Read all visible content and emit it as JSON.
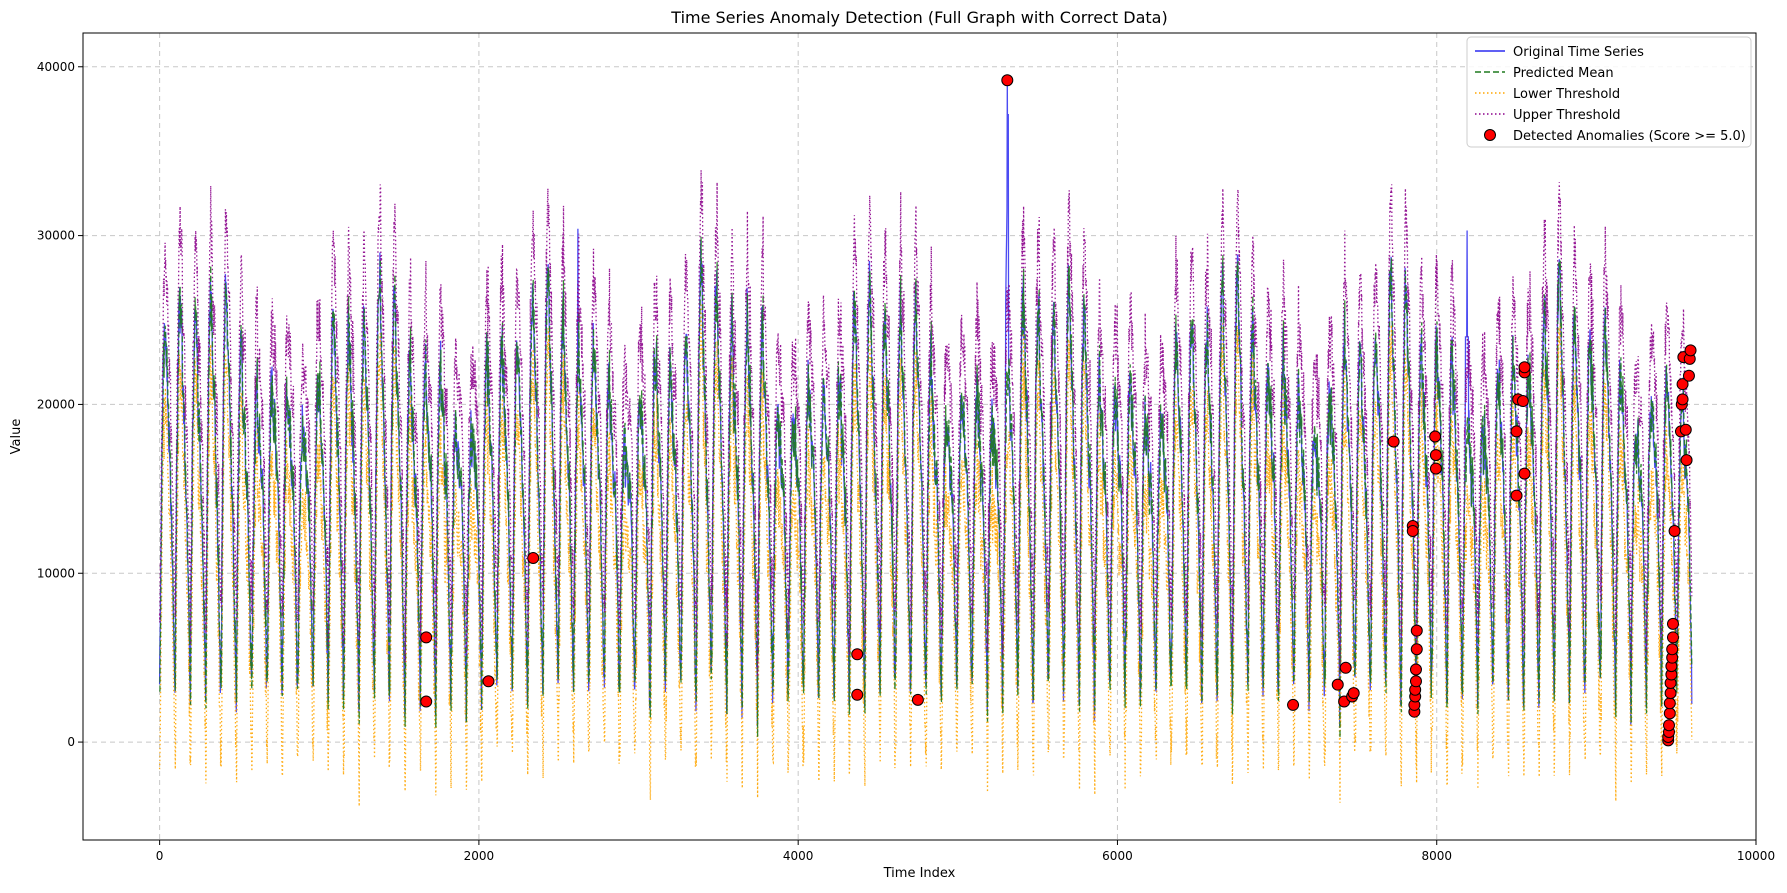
{
  "chart_data": {
    "type": "line",
    "title": "Time Series Anomaly Detection (Full Graph with Correct Data)",
    "xlabel": "Time Index",
    "ylabel": "Value",
    "xlim": [
      -480,
      10000
    ],
    "ylim": [
      -5800,
      42000
    ],
    "xticks": [
      0,
      2000,
      4000,
      6000,
      8000,
      10000
    ],
    "yticks": [
      0,
      10000,
      20000,
      30000,
      40000
    ],
    "grid": true,
    "legend_position": "top-right",
    "series": [
      {
        "name": "Original Time Series",
        "color": "#2b2bf0",
        "style": "solid",
        "approximate_points": {
          "x": [
            0,
            120,
            480,
            960,
            1440,
            1920,
            2400,
            2620,
            2880,
            3360,
            3840,
            4320,
            4800,
            5280,
            5310,
            5760,
            6240,
            6720,
            7200,
            7680,
            8160,
            8190,
            8640,
            8800,
            9120,
            9600
          ],
          "y": [
            16000,
            27000,
            26700,
            25500,
            26000,
            25000,
            26000,
            30400,
            27000,
            27500,
            26500,
            27000,
            28000,
            26500,
            39200,
            28000,
            27000,
            26500,
            26000,
            27000,
            26000,
            30300,
            27500,
            28500,
            26000,
            16000
          ]
        }
      },
      {
        "name": "Predicted Mean",
        "color": "#1f7a1f",
        "style": "dashed",
        "approximate_range": [
          200,
          28000
        ]
      },
      {
        "name": "Lower Threshold",
        "color": "#ffa500",
        "style": "dotted",
        "approximate_range": [
          -3500,
          21000
        ]
      },
      {
        "name": "Upper Threshold",
        "color": "#8b008b",
        "style": "dotted",
        "approximate_range": [
          3500,
          33000
        ]
      }
    ],
    "anomalies": {
      "name": "Detected Anomalies (Score >= 5.0)",
      "color": "#ff0000",
      "points": [
        [
          1670,
          6200
        ],
        [
          1670,
          2400
        ],
        [
          2060,
          3600
        ],
        [
          2340,
          10900
        ],
        [
          4370,
          5200
        ],
        [
          4370,
          2800
        ],
        [
          4750,
          2500
        ],
        [
          5310,
          39200
        ],
        [
          7100,
          2200
        ],
        [
          7380,
          3400
        ],
        [
          7420,
          2400
        ],
        [
          7430,
          4400
        ],
        [
          7470,
          2700
        ],
        [
          7480,
          2900
        ],
        [
          7730,
          17800
        ],
        [
          7850,
          12800
        ],
        [
          7850,
          12500
        ],
        [
          7860,
          1800
        ],
        [
          7860,
          2200
        ],
        [
          7865,
          2700
        ],
        [
          7865,
          3100
        ],
        [
          7870,
          3600
        ],
        [
          7870,
          4300
        ],
        [
          7875,
          5500
        ],
        [
          7875,
          6600
        ],
        [
          7990,
          18100
        ],
        [
          7995,
          17000
        ],
        [
          7995,
          16200
        ],
        [
          8500,
          14600
        ],
        [
          8500,
          18400
        ],
        [
          8510,
          20300
        ],
        [
          8540,
          20200
        ],
        [
          8550,
          21900
        ],
        [
          8550,
          22200
        ],
        [
          8550,
          15900
        ],
        [
          9450,
          100
        ],
        [
          9450,
          300
        ],
        [
          9455,
          600
        ],
        [
          9455,
          1000
        ],
        [
          9460,
          1700
        ],
        [
          9460,
          2300
        ],
        [
          9465,
          2900
        ],
        [
          9465,
          3500
        ],
        [
          9470,
          4000
        ],
        [
          9470,
          4500
        ],
        [
          9475,
          5000
        ],
        [
          9475,
          5500
        ],
        [
          9480,
          6200
        ],
        [
          9480,
          7000
        ],
        [
          9490,
          12500
        ],
        [
          9530,
          18400
        ],
        [
          9535,
          20000
        ],
        [
          9540,
          20300
        ],
        [
          9540,
          21200
        ],
        [
          9545,
          22800
        ],
        [
          9560,
          18500
        ],
        [
          9565,
          16700
        ],
        [
          9580,
          21700
        ],
        [
          9585,
          22700
        ],
        [
          9590,
          23200
        ]
      ]
    }
  }
}
